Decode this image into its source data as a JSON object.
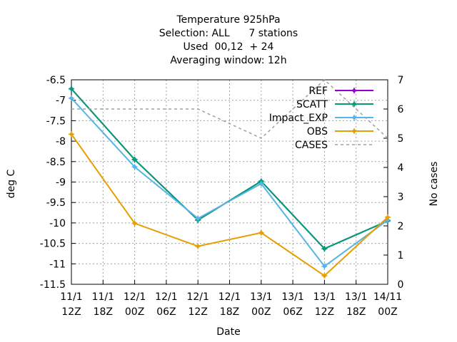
{
  "chart_data": {
    "type": "line",
    "title_lines": [
      "Temperature 925hPa",
      "Selection: ALL      7 stations",
      "Used  00,12  + 24",
      "Averaging window: 12h"
    ],
    "xlabel": "Date",
    "ylabel": "deg C",
    "y2label": "No cases",
    "x_ticks": [
      {
        "day": "11/1",
        "hour": "12Z"
      },
      {
        "day": "11/1",
        "hour": "18Z"
      },
      {
        "day": "12/1",
        "hour": "00Z"
      },
      {
        "day": "12/1",
        "hour": "06Z"
      },
      {
        "day": "12/1",
        "hour": "12Z"
      },
      {
        "day": "12/1",
        "hour": "18Z"
      },
      {
        "day": "13/1",
        "hour": "00Z"
      },
      {
        "day": "13/1",
        "hour": "06Z"
      },
      {
        "day": "13/1",
        "hour": "12Z"
      },
      {
        "day": "13/1",
        "hour": "18Z"
      },
      {
        "day": "14/11",
        "hour": "00Z"
      }
    ],
    "y_ticks": [
      "-6.5",
      "-7",
      "-7.5",
      "-8",
      "-8.5",
      "-9",
      "-9.5",
      "-10",
      "-10.5",
      "-11",
      "-11.5"
    ],
    "y2_ticks": [
      "7",
      "6",
      "5",
      "4",
      "3",
      "2",
      "1",
      "0"
    ],
    "ylim": [
      -11.5,
      -6.5
    ],
    "y2lim": [
      0,
      7
    ],
    "grid": true,
    "legend_position": "top-right",
    "series": [
      {
        "name": "REF",
        "axis": "y",
        "color": "#9400d3",
        "dash": false,
        "marker": true,
        "points": [
          [
            0,
            -6.72
          ],
          [
            2,
            -8.45
          ],
          [
            4,
            -9.93
          ],
          [
            6,
            -8.98
          ],
          [
            8,
            -10.63
          ],
          [
            10,
            -9.95
          ]
        ]
      },
      {
        "name": "SCATT",
        "axis": "y",
        "color": "#009e73",
        "dash": false,
        "marker": true,
        "points": [
          [
            0,
            -6.72
          ],
          [
            2,
            -8.45
          ],
          [
            4,
            -9.93
          ],
          [
            6,
            -8.98
          ],
          [
            8,
            -10.63
          ],
          [
            10,
            -9.95
          ]
        ]
      },
      {
        "name": "Impact_EXP",
        "axis": "y",
        "color": "#56b4e9",
        "dash": false,
        "marker": true,
        "points": [
          [
            0,
            -6.95
          ],
          [
            2,
            -8.63
          ],
          [
            4,
            -9.89
          ],
          [
            6,
            -9.04
          ],
          [
            8,
            -11.06
          ],
          [
            10,
            -9.93
          ]
        ]
      },
      {
        "name": "OBS",
        "axis": "y",
        "color": "#e69f00",
        "dash": false,
        "marker": true,
        "points": [
          [
            0,
            -7.83
          ],
          [
            2,
            -10.01
          ],
          [
            4,
            -10.57
          ],
          [
            6,
            -10.24
          ],
          [
            8,
            -11.29
          ],
          [
            10,
            -9.86
          ]
        ]
      },
      {
        "name": "CASES",
        "axis": "y2",
        "color": "#a0a0a0",
        "dash": true,
        "marker": false,
        "points": [
          [
            0,
            6
          ],
          [
            2,
            6
          ],
          [
            4,
            6
          ],
          [
            6,
            5
          ],
          [
            8,
            7
          ],
          [
            10,
            5
          ]
        ]
      }
    ]
  }
}
